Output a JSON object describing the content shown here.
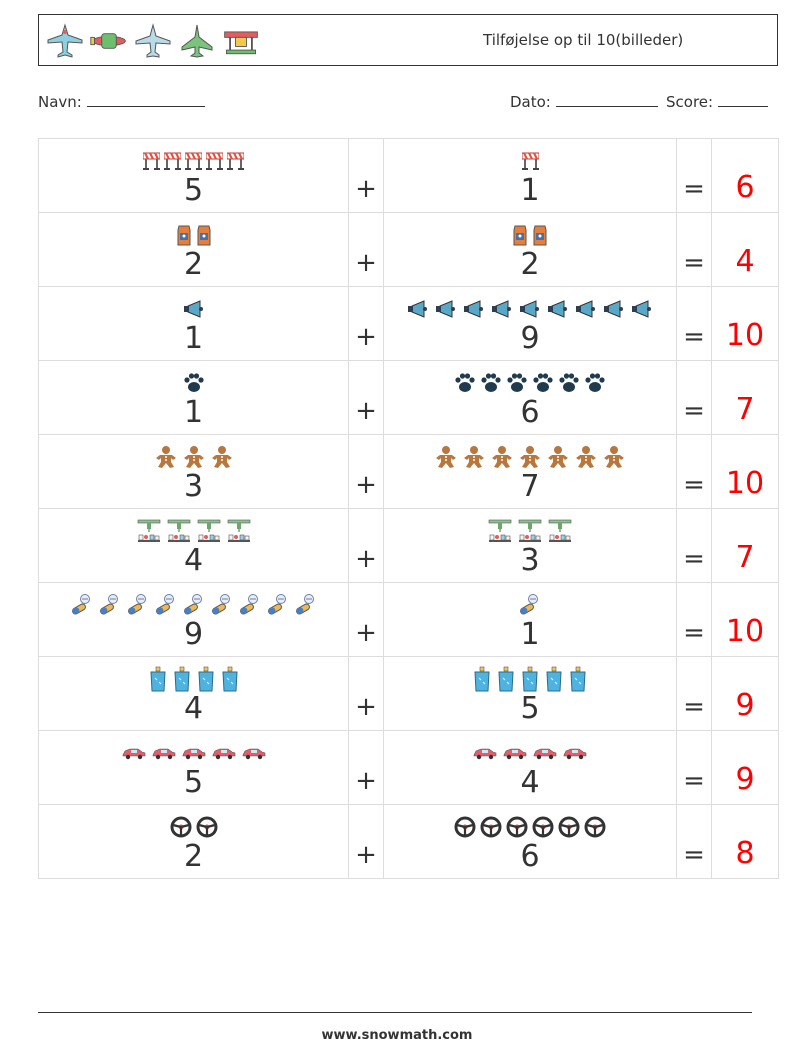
{
  "header": {
    "title": "Tilføjelse op til 10(billeder)",
    "icons": [
      "airplane-icon",
      "propeller-plane-icon",
      "jet-icon",
      "fighter-jet-icon",
      "seaplane-icon"
    ]
  },
  "meta": {
    "name_label": "Navn:",
    "date_label": "Dato:",
    "score_label": "Score:"
  },
  "operators": {
    "plus": "+",
    "equals": "="
  },
  "problems": [
    {
      "a": "5",
      "b": "1",
      "answer": "6",
      "icon": "barrier-icon"
    },
    {
      "a": "2",
      "b": "2",
      "answer": "4",
      "icon": "milk-carton-icon"
    },
    {
      "a": "1",
      "b": "9",
      "answer": "10",
      "icon": "megaphone-icon"
    },
    {
      "a": "1",
      "b": "6",
      "answer": "7",
      "icon": "paw-print-icon"
    },
    {
      "a": "3",
      "b": "7",
      "answer": "10",
      "icon": "gingerbread-man-icon"
    },
    {
      "a": "4",
      "b": "3",
      "answer": "7",
      "icon": "lab-equipment-icon"
    },
    {
      "a": "9",
      "b": "1",
      "answer": "10",
      "icon": "pills-icon"
    },
    {
      "a": "4",
      "b": "5",
      "answer": "9",
      "icon": "water-glass-icon"
    },
    {
      "a": "5",
      "b": "4",
      "answer": "9",
      "icon": "car-icon"
    },
    {
      "a": "2",
      "b": "6",
      "answer": "8",
      "icon": "steering-wheel-icon"
    }
  ],
  "footer": {
    "url": "www.snowmath.com"
  }
}
